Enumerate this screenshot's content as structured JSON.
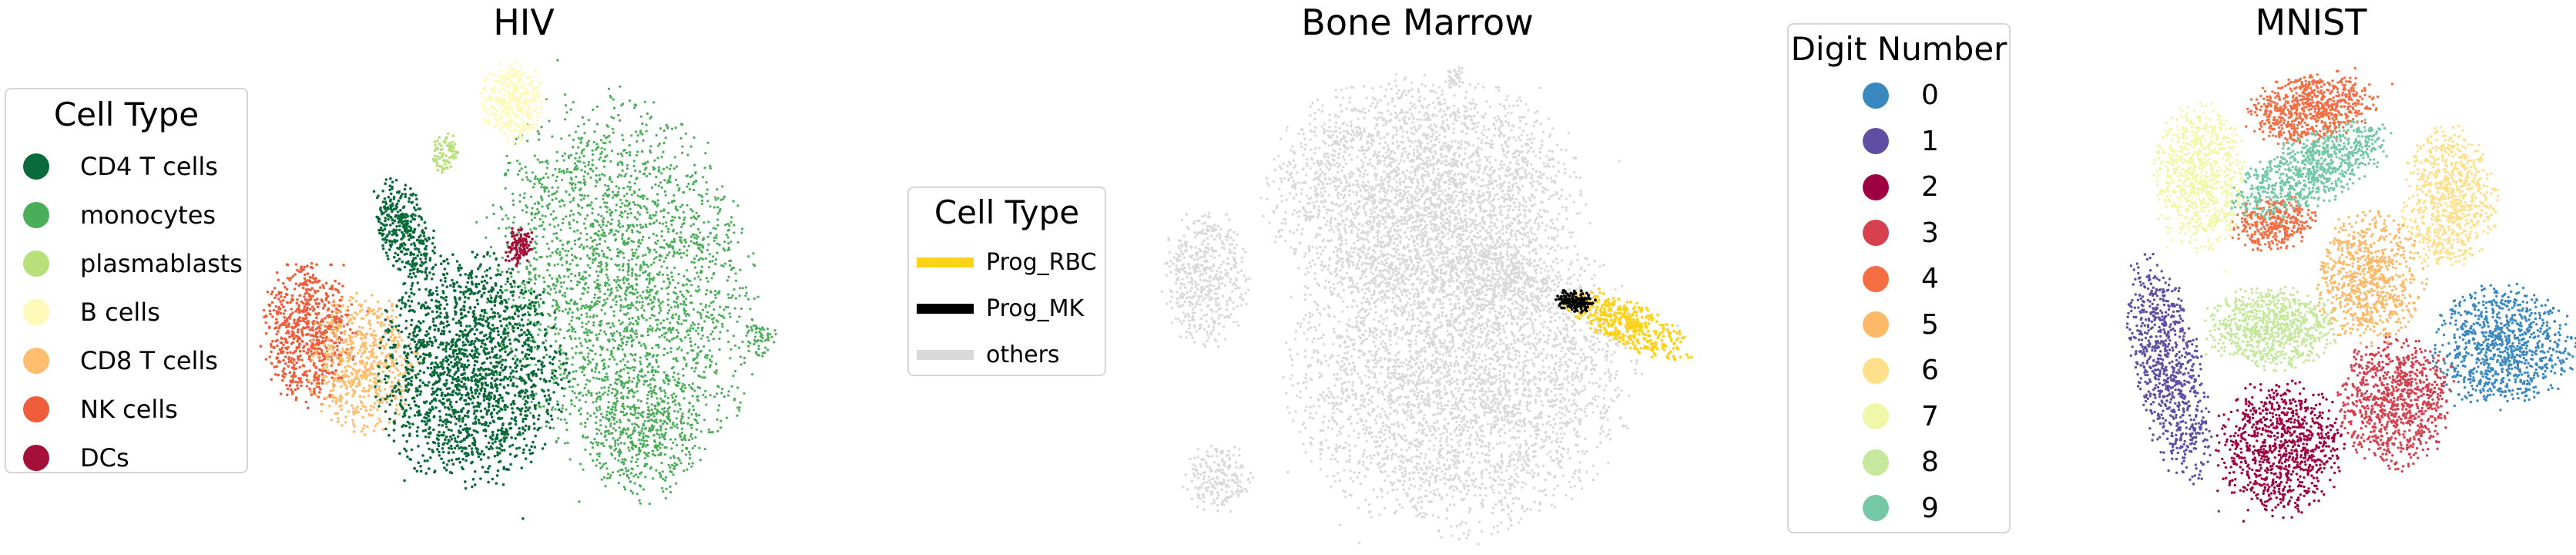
{
  "colors": {
    "cd4": "#0a6a3a",
    "mono": "#4aae58",
    "plasma": "#b8e07a",
    "bcell": "#fdf9b8",
    "cd8": "#fdbe70",
    "nk": "#f05d3b",
    "dc": "#a51038",
    "prog_rbc": "#ffd21a",
    "prog_mk": "#000000",
    "others": "#d9d9d9",
    "d0": "#3a88c0",
    "d1": "#5e4fa2",
    "d2": "#9e0142",
    "d3": "#d6404e",
    "d4": "#f46d43",
    "d5": "#fdb868",
    "d6": "#fee08b",
    "d7": "#f1f7a8",
    "d8": "#c5e89c",
    "d9": "#74c8a6"
  },
  "chart_data": [
    {
      "type": "scatter",
      "title": "HIV",
      "legend_title": "Cell Type",
      "legend_position": "left",
      "grid": false,
      "axes_visible": false,
      "series": [
        {
          "name": "CD4 T cells",
          "color_key": "cd4"
        },
        {
          "name": "monocytes",
          "color_key": "mono"
        },
        {
          "name": "plasmablasts",
          "color_key": "plasma"
        },
        {
          "name": "B cells",
          "color_key": "bcell"
        },
        {
          "name": "CD8 T cells",
          "color_key": "cd8"
        },
        {
          "name": "NK cells",
          "color_key": "nk"
        },
        {
          "name": "DCs",
          "color_key": "dc"
        }
      ]
    },
    {
      "type": "scatter",
      "title": "Bone Marrow",
      "legend_title": "Cell Type",
      "legend_position": "left",
      "grid": false,
      "axes_visible": false,
      "series": [
        {
          "name": "Prog_RBC",
          "color_key": "prog_rbc"
        },
        {
          "name": "Prog_MK",
          "color_key": "prog_mk"
        },
        {
          "name": "others",
          "color_key": "others"
        }
      ]
    },
    {
      "type": "scatter",
      "title": "MNIST",
      "legend_title": "Digit Number",
      "legend_position": "left",
      "grid": false,
      "axes_visible": false,
      "series": [
        {
          "name": "0",
          "color_key": "d0"
        },
        {
          "name": "1",
          "color_key": "d1"
        },
        {
          "name": "2",
          "color_key": "d2"
        },
        {
          "name": "3",
          "color_key": "d3"
        },
        {
          "name": "4",
          "color_key": "d4"
        },
        {
          "name": "5",
          "color_key": "d5"
        },
        {
          "name": "6",
          "color_key": "d6"
        },
        {
          "name": "7",
          "color_key": "d7"
        },
        {
          "name": "8",
          "color_key": "d8"
        },
        {
          "name": "9",
          "color_key": "d9"
        }
      ]
    }
  ]
}
